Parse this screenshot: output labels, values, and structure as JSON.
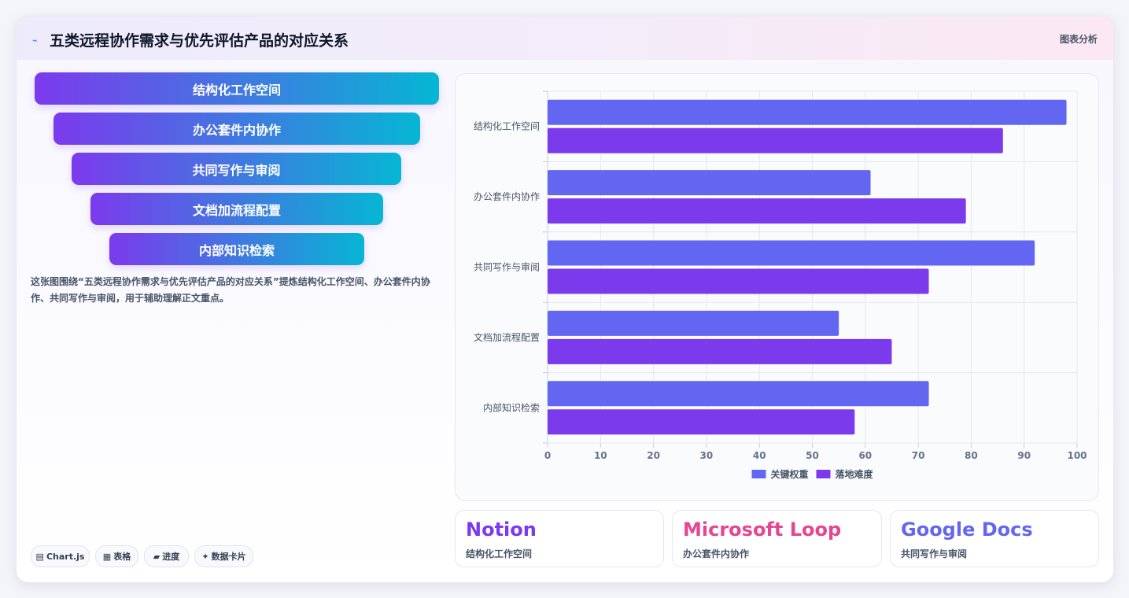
{
  "header": {
    "icon": "⌁",
    "title": "五类远程协作需求与优先评估产品的对应关系",
    "tag": "图表分析"
  },
  "funnel": [
    {
      "label": "结构化工作空间"
    },
    {
      "label": "办公套件内协作"
    },
    {
      "label": "共同写作与审阅"
    },
    {
      "label": "文档加流程配置"
    },
    {
      "label": "内部知识检索"
    }
  ],
  "description": "这张图围绕“五类远程协作需求与优先评估产品的对应关系”提炼结构化工作空间、办公套件内协作、共同写作与审阅，用于辅助理解正文重点。",
  "chips": [
    {
      "icon": "▤",
      "label": "Chart.js"
    },
    {
      "icon": "▦",
      "label": "表格"
    },
    {
      "icon": "▰",
      "label": "进度"
    },
    {
      "icon": "✦",
      "label": "数据卡片"
    }
  ],
  "chart_data": {
    "type": "bar",
    "orientation": "horizontal",
    "categories": [
      "结构化工作空间",
      "办公套件内协作",
      "共同写作与审阅",
      "文档加流程配置",
      "内部知识检索"
    ],
    "series": [
      {
        "name": "关键权重",
        "values": [
          98,
          61,
          92,
          55,
          72
        ],
        "color": "#6366f1"
      },
      {
        "name": "落地难度",
        "values": [
          86,
          79,
          72,
          65,
          58
        ],
        "color": "#7c3aed"
      }
    ],
    "xlim": [
      0,
      100
    ],
    "xticks": [
      0,
      10,
      20,
      30,
      40,
      50,
      60,
      70,
      80,
      90,
      100
    ],
    "grid": true,
    "legend": "bottom"
  },
  "products": [
    {
      "name": "Notion",
      "sub": "结构化工作空间",
      "color": "#7c3aed"
    },
    {
      "name": "Microsoft Loop",
      "sub": "办公套件内协作",
      "color": "#e64590"
    },
    {
      "name": "Google Docs",
      "sub": "共同写作与审阅",
      "color": "#6366f1"
    }
  ]
}
